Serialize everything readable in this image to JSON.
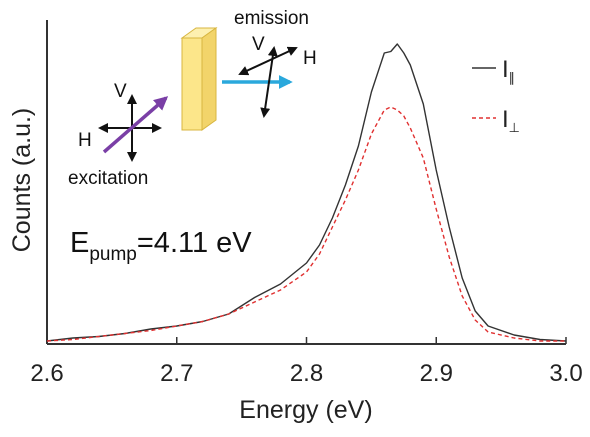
{
  "chart_data": {
    "type": "line",
    "title": "",
    "xlabel": "Energy (eV)",
    "ylabel": "Counts (a.u.)",
    "xlim": [
      2.6,
      3.0
    ],
    "ylim": [
      0,
      1.08
    ],
    "xticks": [
      "2.6",
      "2.7",
      "2.8",
      "2.9",
      "3.0"
    ],
    "show_y_ticks": false,
    "grid": false,
    "legend_position": "top-right",
    "legend": {
      "parallel": {
        "main": "I",
        "sub": "∥"
      },
      "perpendicular": {
        "main": "I",
        "sub": "⊥"
      }
    },
    "series": [
      {
        "style": "solid",
        "color": "#333333",
        "x": [
          2.6,
          2.62,
          2.64,
          2.66,
          2.68,
          2.7,
          2.72,
          2.74,
          2.76,
          2.78,
          2.8,
          2.81,
          2.82,
          2.83,
          2.84,
          2.85,
          2.86,
          2.865,
          2.87,
          2.875,
          2.88,
          2.89,
          2.9,
          2.91,
          2.92,
          2.93,
          2.94,
          2.96,
          2.98,
          3.0
        ],
        "y": [
          0.01,
          0.02,
          0.025,
          0.035,
          0.05,
          0.06,
          0.075,
          0.1,
          0.155,
          0.2,
          0.27,
          0.33,
          0.42,
          0.53,
          0.66,
          0.84,
          0.97,
          0.975,
          1.0,
          0.97,
          0.93,
          0.8,
          0.58,
          0.39,
          0.22,
          0.11,
          0.06,
          0.03,
          0.015,
          0.01
        ]
      },
      {
        "style": "dashed",
        "color": "#e03030",
        "x": [
          2.6,
          2.62,
          2.64,
          2.66,
          2.68,
          2.7,
          2.72,
          2.74,
          2.76,
          2.78,
          2.8,
          2.81,
          2.82,
          2.83,
          2.84,
          2.85,
          2.86,
          2.865,
          2.87,
          2.875,
          2.88,
          2.89,
          2.9,
          2.91,
          2.92,
          2.93,
          2.94,
          2.96,
          2.98,
          3.0
        ],
        "y": [
          0.01,
          0.015,
          0.025,
          0.035,
          0.045,
          0.06,
          0.075,
          0.1,
          0.14,
          0.18,
          0.24,
          0.3,
          0.39,
          0.48,
          0.58,
          0.7,
          0.78,
          0.79,
          0.78,
          0.76,
          0.72,
          0.62,
          0.45,
          0.29,
          0.16,
          0.08,
          0.04,
          0.02,
          0.01,
          0.01
        ]
      }
    ],
    "annotations": {
      "pump": {
        "main": "E",
        "sub": "pump",
        "value": "=4.11 eV"
      },
      "inset": {
        "emission": "emission",
        "excitation": "excitation",
        "v_emission": "V",
        "h_emission": "H",
        "v_excitation": "V",
        "h_excitation": "H"
      }
    }
  },
  "colors": {
    "sample_fill": "#fce68a",
    "sample_edge": "#d8b640",
    "excitation_arrow": "#7a3fa6",
    "emission_arrow": "#2aa8dc"
  }
}
